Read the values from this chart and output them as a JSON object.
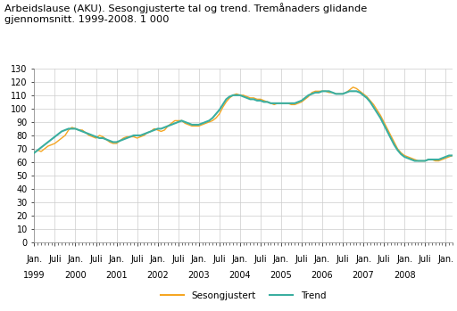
{
  "title": "Arbeidslause (AKU). Sesongjusterte tal og trend. Tremånaders glidande\ngjennomsnitt. 1999-2008. 1 000",
  "ylim": [
    0,
    130
  ],
  "yticks": [
    0,
    10,
    20,
    30,
    40,
    50,
    60,
    70,
    80,
    90,
    100,
    110,
    120,
    130
  ],
  "color_seasonal": "#f5a623",
  "color_trend": "#3aaea0",
  "legend_seasonal": "Sesongjustert",
  "legend_trend": "Trend",
  "background_color": "#ffffff",
  "grid_color": "#cccccc",
  "seasonal": [
    67,
    69,
    68,
    70,
    72,
    73,
    74,
    76,
    78,
    80,
    84,
    86,
    85,
    84,
    84,
    82,
    80,
    79,
    78,
    80,
    79,
    77,
    75,
    74,
    74,
    76,
    78,
    79,
    79,
    79,
    78,
    79,
    80,
    82,
    83,
    85,
    84,
    83,
    84,
    87,
    89,
    91,
    91,
    91,
    89,
    88,
    87,
    87,
    87,
    88,
    89,
    90,
    91,
    93,
    96,
    101,
    105,
    108,
    110,
    111,
    110,
    110,
    109,
    108,
    108,
    107,
    107,
    106,
    105,
    104,
    103,
    104,
    104,
    104,
    104,
    103,
    103,
    104,
    105,
    107,
    109,
    112,
    113,
    113,
    113,
    113,
    112,
    112,
    111,
    111,
    111,
    112,
    114,
    116,
    115,
    113,
    111,
    109,
    106,
    103,
    99,
    95,
    90,
    85,
    80,
    75,
    70,
    67,
    65,
    64,
    63,
    62,
    61,
    61,
    61,
    62,
    62,
    61,
    61,
    62,
    63,
    64,
    65
  ],
  "trend": [
    67,
    69,
    71,
    73,
    75,
    77,
    79,
    81,
    83,
    84,
    85,
    85,
    85,
    84,
    83,
    82,
    81,
    80,
    79,
    78,
    78,
    77,
    76,
    75,
    75,
    76,
    77,
    78,
    79,
    80,
    80,
    80,
    81,
    82,
    83,
    84,
    85,
    85,
    86,
    87,
    88,
    89,
    90,
    91,
    90,
    89,
    88,
    88,
    88,
    89,
    90,
    91,
    93,
    96,
    99,
    103,
    107,
    109,
    110,
    110,
    110,
    109,
    108,
    107,
    107,
    106,
    106,
    105,
    105,
    104,
    104,
    104,
    104,
    104,
    104,
    104,
    104,
    105,
    106,
    108,
    110,
    111,
    112,
    112,
    113,
    113,
    113,
    112,
    111,
    111,
    111,
    112,
    113,
    113,
    113,
    112,
    110,
    108,
    105,
    101,
    97,
    93,
    88,
    83,
    78,
    73,
    69,
    66,
    64,
    63,
    62,
    61,
    61,
    61,
    61,
    62,
    62,
    62,
    62,
    63,
    64,
    65,
    65
  ],
  "xtick_positions": [
    0,
    6,
    12,
    18,
    24,
    30,
    36,
    42,
    48,
    54,
    60,
    66,
    72,
    78,
    84,
    90,
    96,
    102,
    108,
    114,
    120
  ],
  "xtick_labels_row1": [
    "Jan.",
    "Juli",
    "Jan.",
    "Juli",
    "Jan.",
    "Juli",
    "Jan.",
    "Juli",
    "Jan.",
    "Juli",
    "Jan.",
    "Juli",
    "Jan.",
    "Juli",
    "Jan.",
    "Juli",
    "Jan.",
    "Juli",
    "Jan.",
    "Juli",
    "Jan."
  ],
  "xtick_labels_row2": [
    "1999",
    "",
    "2000",
    "",
    "2001",
    "",
    "2002",
    "",
    "2003",
    "",
    "2004",
    "",
    "2005",
    "",
    "2006",
    "",
    "2007",
    "",
    "2008",
    "",
    ""
  ]
}
